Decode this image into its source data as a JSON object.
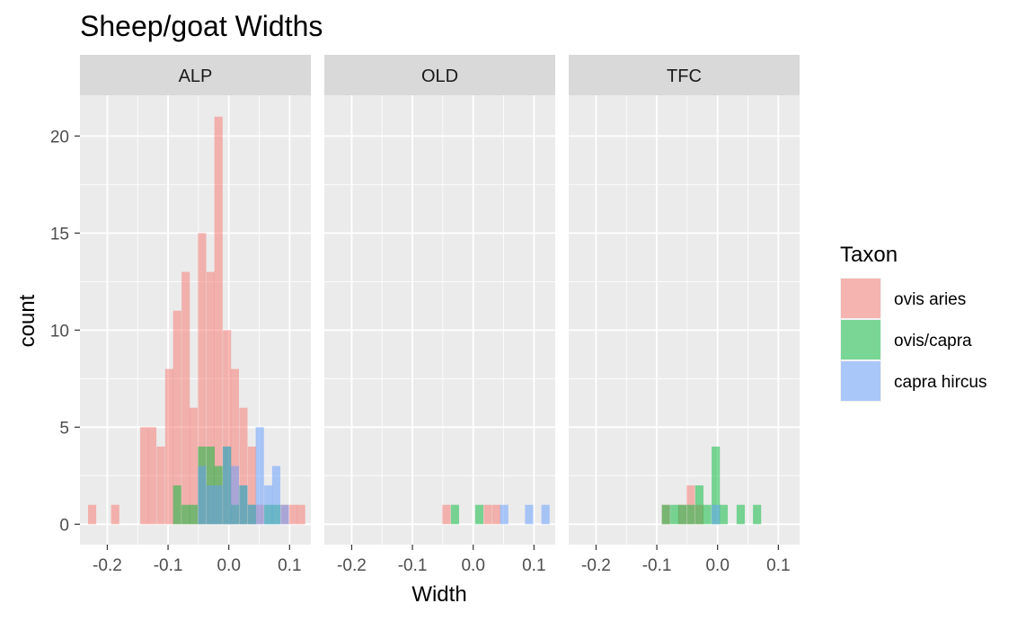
{
  "chart_data": {
    "type": "histogram",
    "title": "Sheep/goat Widths",
    "xlabel": "Width",
    "ylabel": "count",
    "xlim": [
      -0.245,
      0.135
    ],
    "ylim": [
      -1.05,
      22.1
    ],
    "x_ticks": [
      -0.2,
      -0.1,
      0.0,
      0.1
    ],
    "x_tick_labels": [
      "-0.2",
      "-0.1",
      "0.0",
      "0.1"
    ],
    "y_ticks": [
      0,
      5,
      10,
      15,
      20
    ],
    "y_tick_labels": [
      "0",
      "5",
      "10",
      "15",
      "20"
    ],
    "bin_width": 0.0135,
    "grid": true,
    "position": "identity",
    "legend": {
      "title": "Taxon",
      "placement": "right",
      "entries": [
        {
          "label": "ovis aries",
          "color": "#F8766D"
        },
        {
          "label": "ovis/capra",
          "color": "#00BA38"
        },
        {
          "label": "capra hircus",
          "color": "#619CFF"
        }
      ]
    },
    "series_colors": {
      "ovis aries": "#F8766D",
      "ovis/capra": "#00BA38",
      "capra hircus": "#619CFF"
    },
    "fill_alpha": 0.5,
    "facets": [
      {
        "label": "ALP",
        "series": [
          {
            "name": "ovis aries",
            "bins": [
              {
                "x": -0.225,
                "count": 1
              },
              {
                "x": -0.187,
                "count": 1
              },
              {
                "x": -0.139,
                "count": 5
              },
              {
                "x": -0.126,
                "count": 5
              },
              {
                "x": -0.112,
                "count": 4
              },
              {
                "x": -0.098,
                "count": 8
              },
              {
                "x": -0.085,
                "count": 11
              },
              {
                "x": -0.071,
                "count": 13
              },
              {
                "x": -0.058,
                "count": 6
              },
              {
                "x": -0.044,
                "count": 15
              },
              {
                "x": -0.03,
                "count": 13
              },
              {
                "x": -0.017,
                "count": 21
              },
              {
                "x": -0.003,
                "count": 10
              },
              {
                "x": 0.01,
                "count": 8
              },
              {
                "x": 0.024,
                "count": 6
              },
              {
                "x": 0.038,
                "count": 4
              },
              {
                "x": 0.051,
                "count": 1
              },
              {
                "x": 0.092,
                "count": 1
              },
              {
                "x": 0.106,
                "count": 1
              },
              {
                "x": 0.119,
                "count": 1
              }
            ]
          },
          {
            "name": "ovis/capra",
            "bins": [
              {
                "x": -0.085,
                "count": 2
              },
              {
                "x": -0.071,
                "count": 1
              },
              {
                "x": -0.058,
                "count": 1
              },
              {
                "x": -0.044,
                "count": 4
              },
              {
                "x": -0.03,
                "count": 4
              },
              {
                "x": -0.017,
                "count": 3
              },
              {
                "x": -0.003,
                "count": 4
              },
              {
                "x": 0.01,
                "count": 1
              },
              {
                "x": 0.024,
                "count": 2
              },
              {
                "x": 0.038,
                "count": 1
              },
              {
                "x": 0.065,
                "count": 1
              },
              {
                "x": 0.078,
                "count": 1
              }
            ]
          },
          {
            "name": "capra hircus",
            "bins": [
              {
                "x": -0.044,
                "count": 3
              },
              {
                "x": -0.03,
                "count": 2
              },
              {
                "x": -0.017,
                "count": 2
              },
              {
                "x": -0.003,
                "count": 4
              },
              {
                "x": 0.01,
                "count": 3
              },
              {
                "x": 0.024,
                "count": 2
              },
              {
                "x": 0.038,
                "count": 1
              },
              {
                "x": 0.051,
                "count": 5
              },
              {
                "x": 0.065,
                "count": 2
              },
              {
                "x": 0.078,
                "count": 3
              },
              {
                "x": 0.092,
                "count": 1
              }
            ]
          }
        ]
      },
      {
        "label": "OLD",
        "series": [
          {
            "name": "ovis aries",
            "bins": [
              {
                "x": -0.044,
                "count": 1
              },
              {
                "x": 0.024,
                "count": 1
              },
              {
                "x": 0.038,
                "count": 1
              }
            ]
          },
          {
            "name": "ovis/capra",
            "bins": [
              {
                "x": -0.03,
                "count": 1
              },
              {
                "x": 0.01,
                "count": 1
              }
            ]
          },
          {
            "name": "capra hircus",
            "bins": [
              {
                "x": 0.051,
                "count": 1
              },
              {
                "x": 0.092,
                "count": 1
              },
              {
                "x": 0.119,
                "count": 1
              }
            ]
          }
        ]
      },
      {
        "label": "TFC",
        "series": [
          {
            "name": "ovis aries",
            "bins": [
              {
                "x": -0.085,
                "count": 1
              },
              {
                "x": -0.058,
                "count": 1
              },
              {
                "x": -0.044,
                "count": 2
              },
              {
                "x": -0.03,
                "count": 1
              }
            ]
          },
          {
            "name": "ovis/capra",
            "bins": [
              {
                "x": -0.085,
                "count": 1
              },
              {
                "x": -0.071,
                "count": 1
              },
              {
                "x": -0.058,
                "count": 1
              },
              {
                "x": -0.044,
                "count": 1
              },
              {
                "x": -0.03,
                "count": 2
              },
              {
                "x": -0.017,
                "count": 1
              },
              {
                "x": -0.003,
                "count": 4
              },
              {
                "x": 0.01,
                "count": 1
              },
              {
                "x": 0.038,
                "count": 1
              },
              {
                "x": 0.065,
                "count": 1
              }
            ]
          },
          {
            "name": "capra hircus",
            "bins": [
              {
                "x": -0.003,
                "count": 1
              }
            ]
          }
        ]
      }
    ]
  }
}
